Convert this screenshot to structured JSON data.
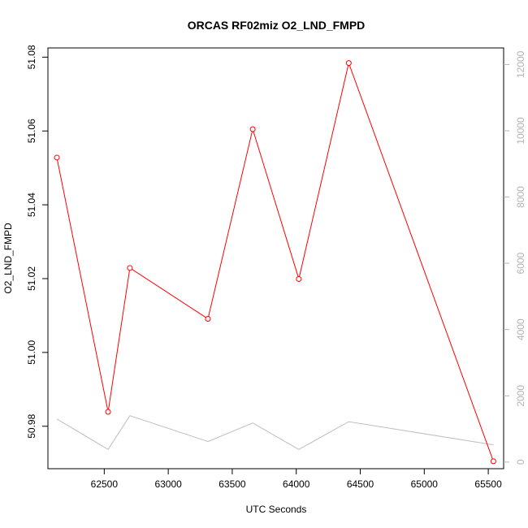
{
  "chart_data": {
    "type": "line",
    "title": "ORCAS RF02miz O2_LND_FMPD",
    "xlabel": "UTC Seconds",
    "ylabel": "O2_LND_FMPD",
    "y2label": "",
    "xlim": [
      62060,
      65620
    ],
    "ylim": [
      50.9685,
      51.0825
    ],
    "y2lim": [
      -200,
      12500
    ],
    "x_ticks": [
      62500,
      63000,
      63500,
      64000,
      64500,
      65000,
      65500
    ],
    "y_ticks": [
      50.98,
      51.0,
      51.02,
      51.04,
      51.06,
      51.08
    ],
    "y_tick_labels": [
      "50.98",
      "51.00",
      "51.02",
      "51.04",
      "51.06",
      "51.08"
    ],
    "y2_ticks": [
      0,
      2000,
      4000,
      6000,
      8000,
      10000,
      12000
    ],
    "grid": false,
    "series": [
      {
        "name": "",
        "axis": "left",
        "color": "#ff0000",
        "markers": "open-circle",
        "x": [
          62130,
          62530,
          62700,
          63310,
          63660,
          64020,
          64410,
          65540
        ],
        "y": [
          51.0528,
          50.9839,
          51.0229,
          51.0091,
          51.0605,
          51.0199,
          51.0784,
          50.9705
        ]
      },
      {
        "name": "",
        "axis": "right",
        "color": "#bebebe",
        "markers": "none",
        "x": [
          62130,
          62530,
          62700,
          63310,
          63660,
          64020,
          64410,
          65540
        ],
        "y": [
          1300,
          380,
          1400,
          620,
          1180,
          380,
          1220,
          520
        ]
      }
    ]
  }
}
